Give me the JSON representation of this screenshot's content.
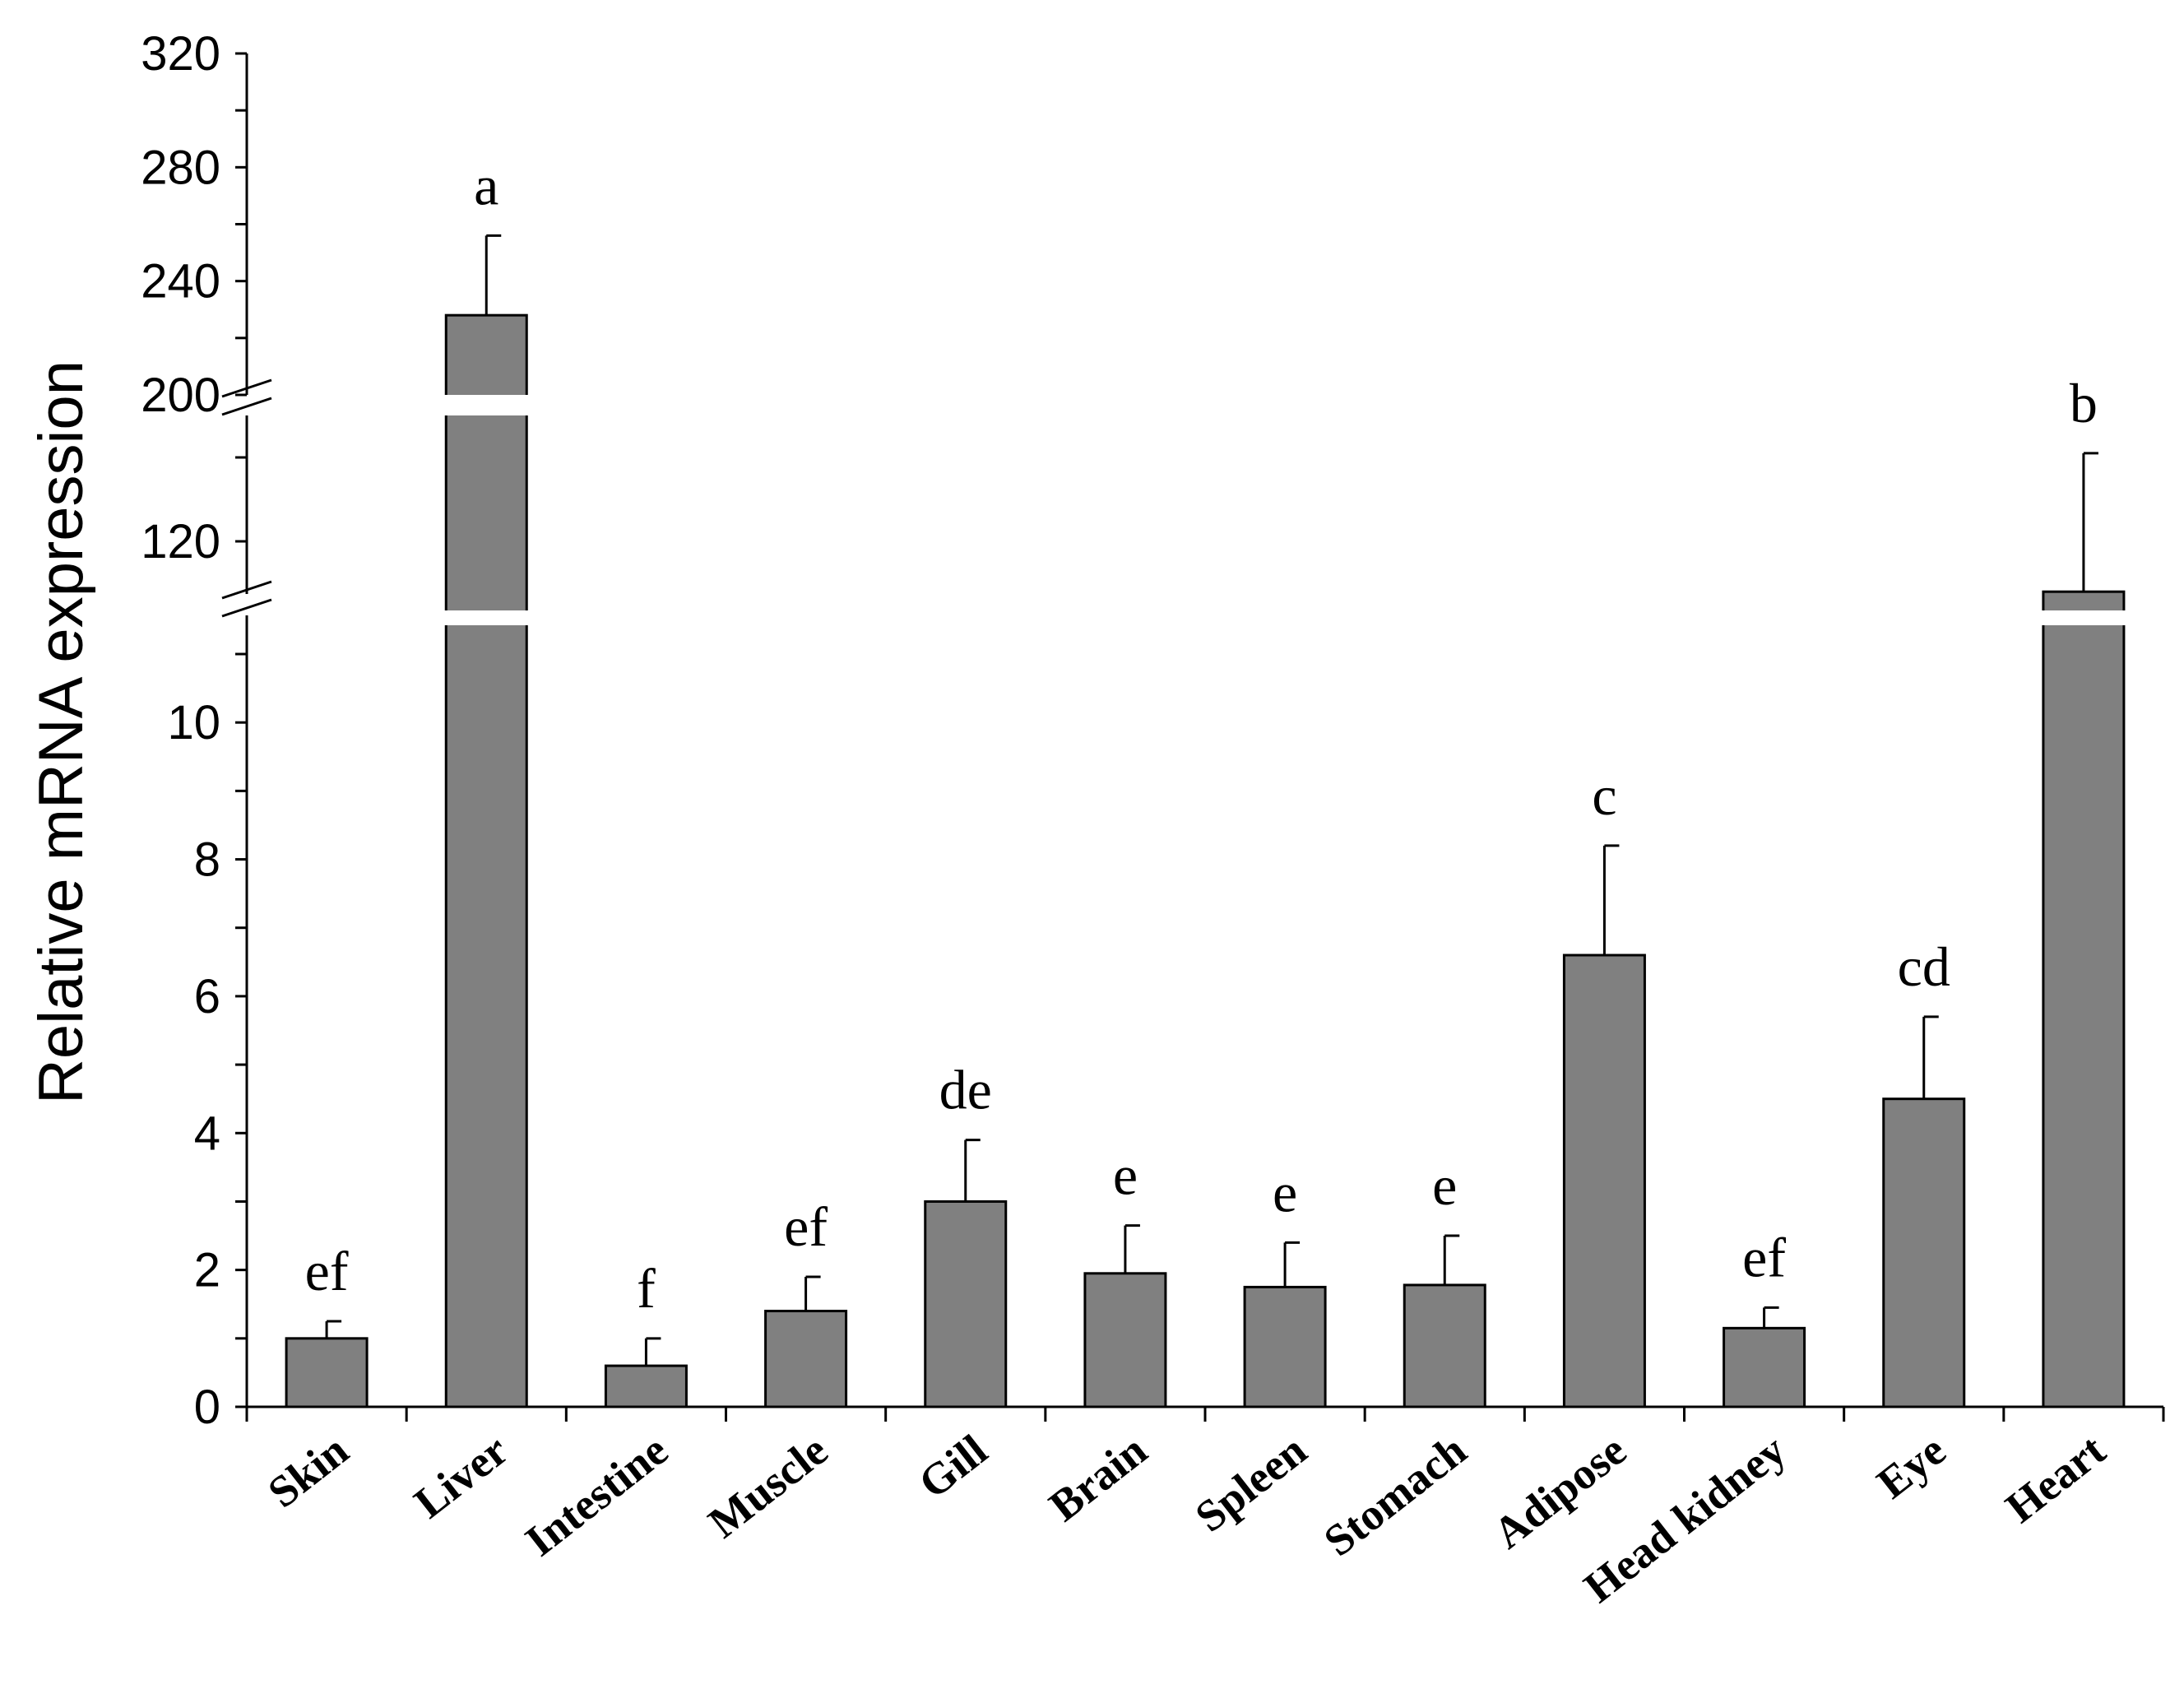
{
  "chart_data": {
    "type": "bar",
    "ylabel": "Relative mRNA expression",
    "xlabel": "",
    "title": "",
    "categories": [
      "Skin",
      "Liver",
      "Intestine",
      "Muscle",
      "Gill",
      "Brain",
      "Spleen",
      "Stomach",
      "Adipose",
      "Head kidney",
      "Eye",
      "Heart"
    ],
    "values": [
      1.0,
      228,
      0.6,
      1.4,
      3.0,
      1.95,
      1.75,
      1.78,
      6.6,
      1.15,
      4.5,
      108
    ],
    "error_upper": [
      1.25,
      256,
      1.0,
      1.9,
      3.9,
      2.65,
      2.4,
      2.5,
      8.2,
      1.45,
      5.7,
      141
    ],
    "significance_letters": [
      "ef",
      "a",
      "f",
      "ef",
      "de",
      "e",
      "e",
      "e",
      "c",
      "ef",
      "cd",
      "b"
    ],
    "bar_color": "#808080",
    "axis_break": true,
    "segments": [
      {
        "name": "lower",
        "ylim": [
          0,
          11
        ],
        "ticks": [
          0,
          2,
          4,
          6,
          8,
          10
        ]
      },
      {
        "name": "middle",
        "ylim": [
          100,
          150
        ],
        "ticks": [
          120
        ]
      },
      {
        "name": "upper",
        "ylim": [
          200,
          320
        ],
        "ticks": [
          200,
          240,
          280,
          320
        ]
      }
    ],
    "legend": "none",
    "grid": false
  }
}
